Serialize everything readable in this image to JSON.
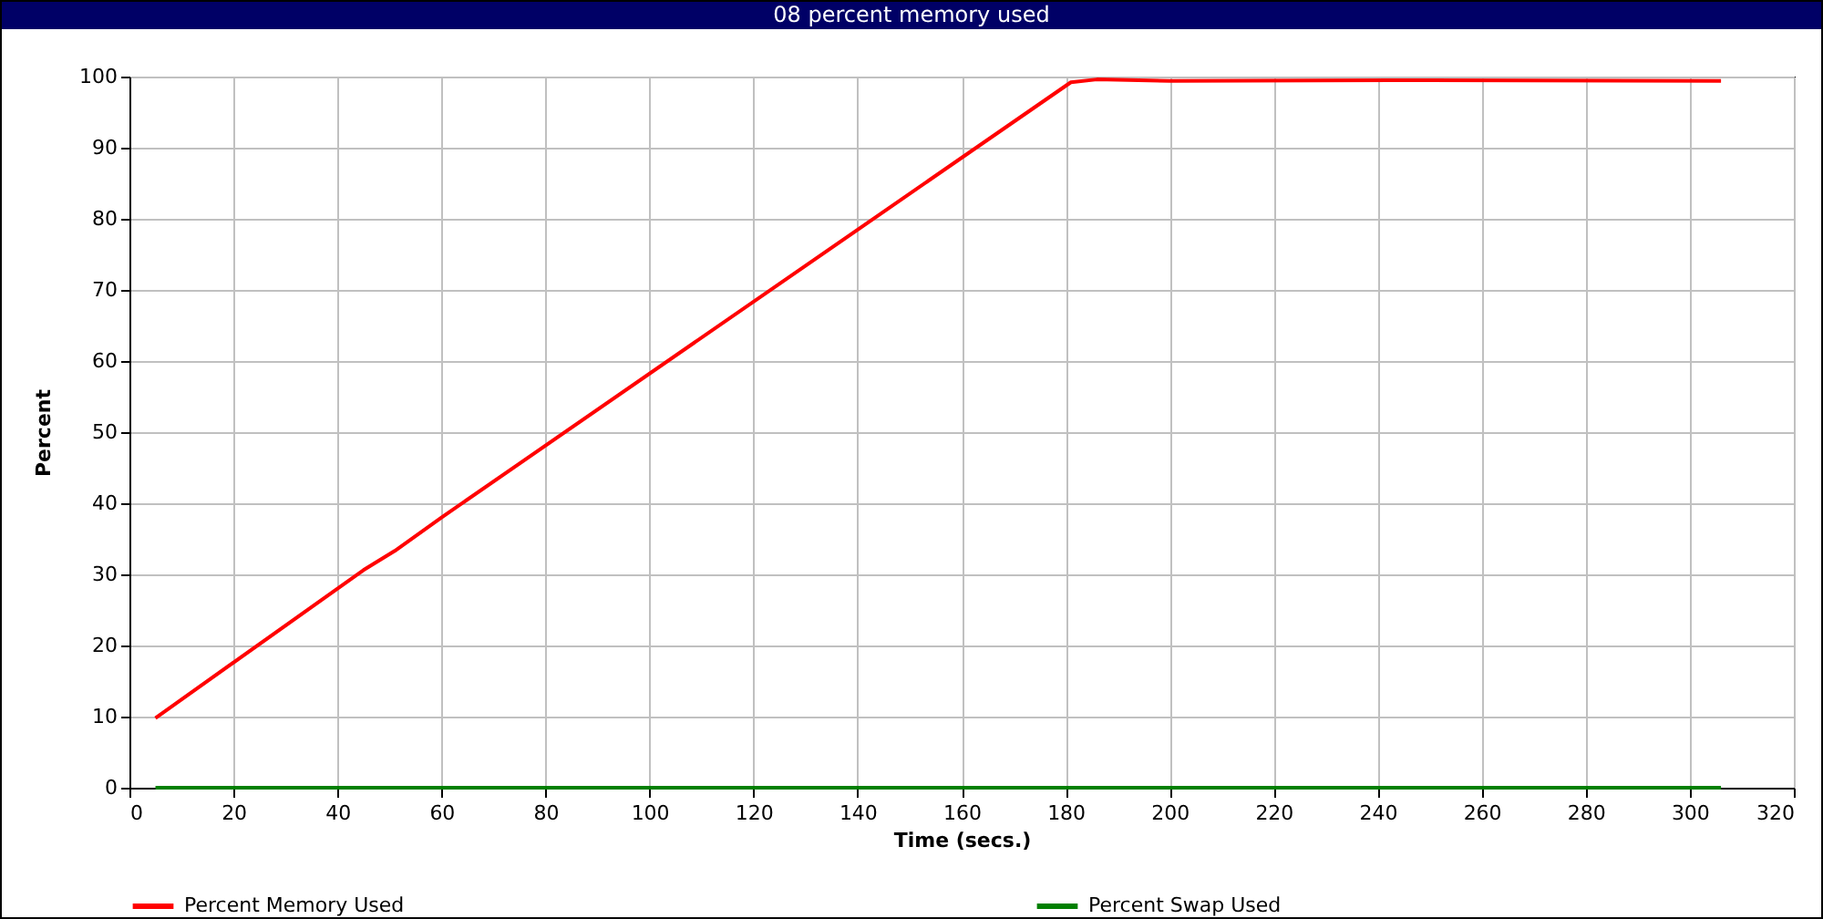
{
  "chart_data": {
    "type": "line",
    "title": "08 percent memory used",
    "xlabel": "Time (secs.)",
    "ylabel": "Percent",
    "xlim": [
      0,
      320
    ],
    "xticks": [
      0,
      20,
      40,
      60,
      80,
      100,
      120,
      140,
      160,
      180,
      200,
      220,
      240,
      260,
      280,
      300,
      320
    ],
    "ylim": [
      0,
      100
    ],
    "yticks": [
      0,
      10,
      20,
      30,
      40,
      50,
      60,
      70,
      80,
      90,
      100
    ],
    "grid": true,
    "legend": "bottom",
    "marker": "none",
    "line_style": "solid",
    "series": [
      {
        "name": "Percent Memory Used",
        "color": "#ff0000",
        "x": [
          5,
          45,
          51,
          60,
          181,
          186,
          200,
          250,
          306
        ],
        "values": [
          9.8,
          30.6,
          33.3,
          38,
          99.2,
          99.6,
          99.4,
          99.5,
          99.4
        ]
      },
      {
        "name": "Percent Swap Used",
        "color": "#008000",
        "x": [
          5,
          306
        ],
        "values": [
          0,
          0
        ]
      }
    ]
  }
}
